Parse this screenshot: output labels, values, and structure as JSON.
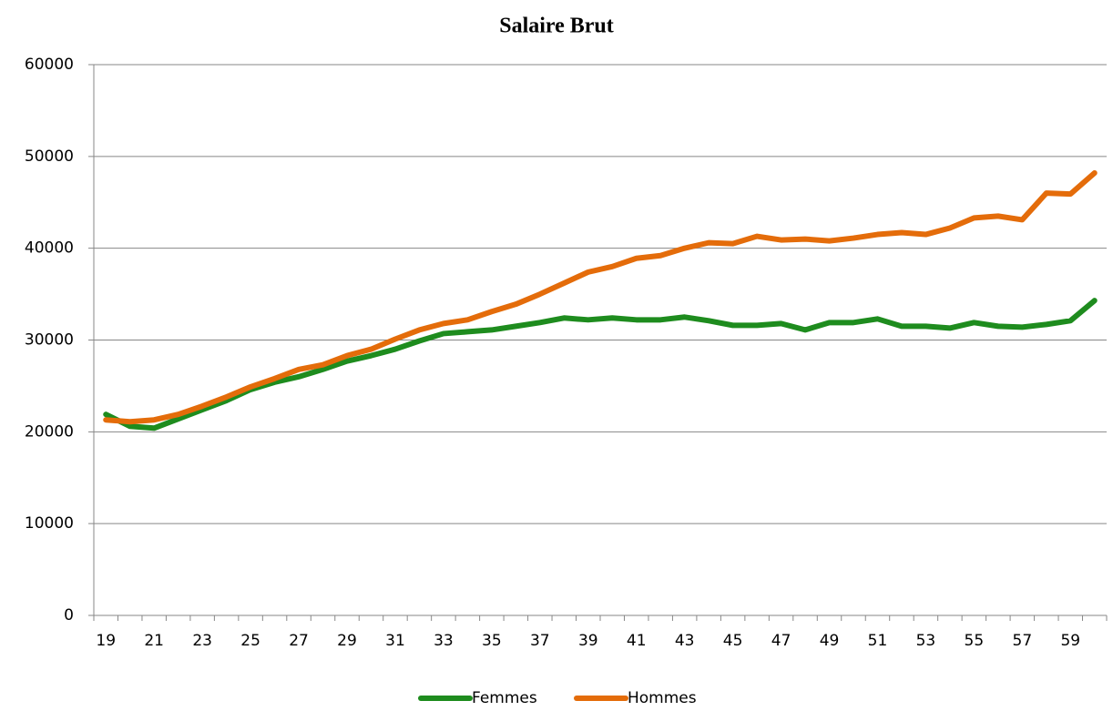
{
  "chart_data": {
    "type": "line",
    "title": "Salaire Brut",
    "categories": [
      "19",
      null,
      "21",
      null,
      "23",
      null,
      "25",
      null,
      "27",
      null,
      "29",
      null,
      "31",
      null,
      "33",
      null,
      "35",
      null,
      "37",
      null,
      "39",
      null,
      "41",
      null,
      "43",
      null,
      "45",
      null,
      "47",
      null,
      "49",
      null,
      "51",
      null,
      "53",
      null,
      "55",
      null,
      "57",
      null,
      "59",
      null
    ],
    "series": [
      {
        "name": "Femmes",
        "color": "#1e8c1e",
        "values": [
          21900,
          20600,
          20400,
          21400,
          22400,
          23400,
          24600,
          25400,
          26000,
          26800,
          27700,
          28300,
          29000,
          29900,
          30700,
          30900,
          31100,
          31500,
          31900,
          32400,
          32200,
          32400,
          32200,
          32200,
          32500,
          32100,
          31600,
          31600,
          31800,
          31100,
          31900,
          31900,
          32300,
          31500,
          31500,
          31300,
          31900,
          31500,
          31400,
          31700,
          32100,
          34300
        ]
      },
      {
        "name": "Hommes",
        "color": "#e46c0a",
        "values": [
          21300,
          21100,
          21300,
          21900,
          22800,
          23800,
          24900,
          25800,
          26800,
          27300,
          28300,
          29000,
          30100,
          31100,
          31800,
          32200,
          33100,
          33900,
          35000,
          36200,
          37400,
          38000,
          38900,
          39200,
          40000,
          40600,
          40500,
          41300,
          40900,
          41000,
          40800,
          41100,
          41500,
          41700,
          41500,
          42200,
          43300,
          43500,
          43100,
          46000,
          45900,
          48200
        ]
      }
    ],
    "ylim": [
      0,
      60000
    ],
    "yticks": [
      0,
      10000,
      20000,
      30000,
      40000,
      50000,
      60000
    ],
    "grid": true,
    "legend": "bottom"
  }
}
